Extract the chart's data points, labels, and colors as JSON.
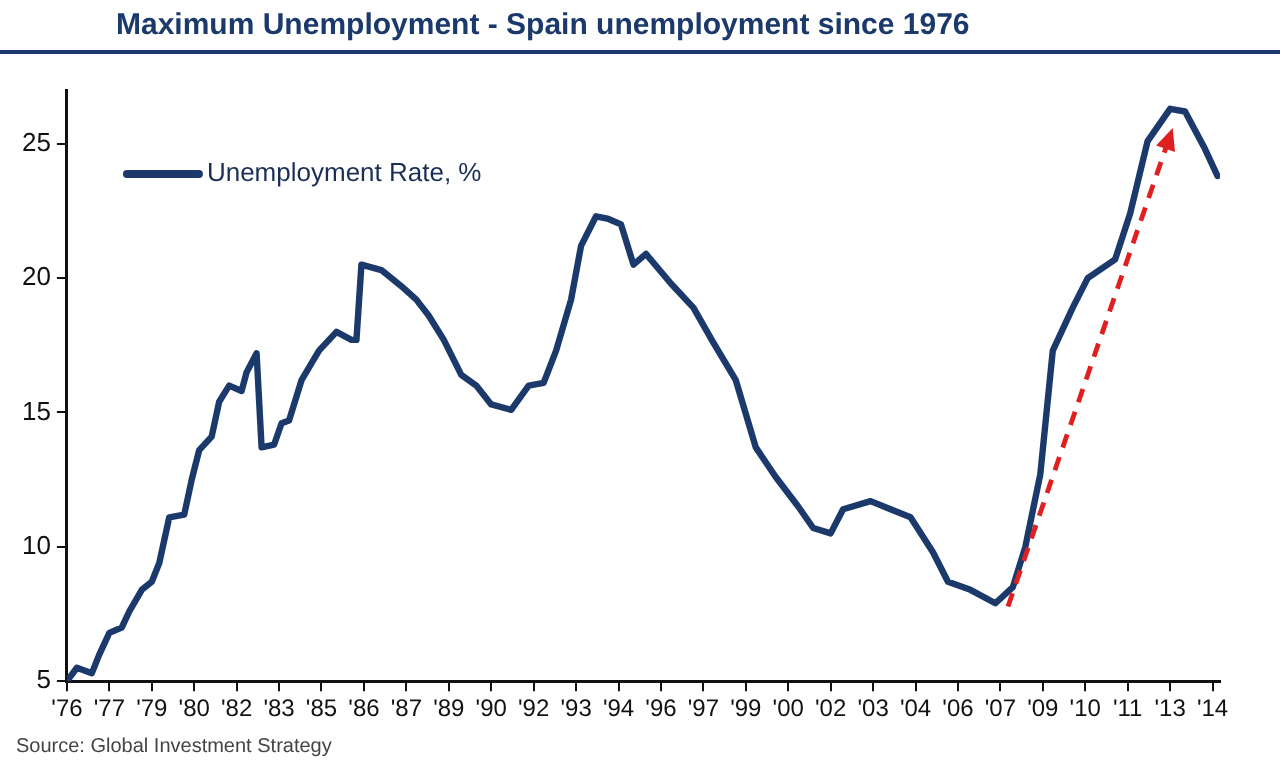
{
  "chart_data": {
    "type": "line",
    "title": "Maximum Unemployment - Spain unemployment since 1976",
    "annotations": [
      "Source: Global Investment Strategy"
    ],
    "xlim": [
      "1976-07",
      "2015-01"
    ],
    "xticks": [
      {
        "value": "1976-07",
        "label": "'76"
      },
      {
        "value": "1977-12",
        "label": "'77"
      },
      {
        "value": "1979-05",
        "label": "'79"
      },
      {
        "value": "1980-10",
        "label": "'80"
      },
      {
        "value": "1982-03",
        "label": "'82"
      },
      {
        "value": "1983-08",
        "label": "'83"
      },
      {
        "value": "1985-01",
        "label": "'85"
      },
      {
        "value": "1986-06",
        "label": "'86"
      },
      {
        "value": "1987-11",
        "label": "'87"
      },
      {
        "value": "1989-04",
        "label": "'89"
      },
      {
        "value": "1990-09",
        "label": "'90"
      },
      {
        "value": "1992-02",
        "label": "'92"
      },
      {
        "value": "1993-07",
        "label": "'93"
      },
      {
        "value": "1994-12",
        "label": "'94"
      },
      {
        "value": "1996-05",
        "label": "'96"
      },
      {
        "value": "1997-10",
        "label": "'97"
      },
      {
        "value": "1999-03",
        "label": "'99"
      },
      {
        "value": "2000-08",
        "label": "'00"
      },
      {
        "value": "2002-01",
        "label": "'02"
      },
      {
        "value": "2003-06",
        "label": "'03"
      },
      {
        "value": "2004-11",
        "label": "'04"
      },
      {
        "value": "2006-04",
        "label": "'06"
      },
      {
        "value": "2007-09",
        "label": "'07"
      },
      {
        "value": "2009-02",
        "label": "'09"
      },
      {
        "value": "2010-07",
        "label": "'10"
      },
      {
        "value": "2011-12",
        "label": "'11"
      },
      {
        "value": "2013-05",
        "label": "'13"
      },
      {
        "value": "2014-10",
        "label": "'14"
      }
    ],
    "ylim": [
      5,
      27
    ],
    "yticks": [
      5,
      10,
      15,
      20,
      25
    ],
    "grid": false,
    "legend": "top left",
    "marker": "none",
    "line_style": "solid",
    "series": [
      {
        "name": "Unemployment Rate, %",
        "color": "#1b3a6b",
        "x": [
          "1976-07",
          "1976-11",
          "1977-05",
          "1977-08",
          "1977-12",
          "1978-05",
          "1978-08",
          "1979-01",
          "1979-05",
          "1979-08",
          "1979-12",
          "1980-06",
          "1980-09",
          "1980-12",
          "1981-05",
          "1981-08",
          "1981-12",
          "1982-05",
          "1982-07",
          "1982-11",
          "1983-01",
          "1983-06",
          "1983-09",
          "1983-12",
          "1984-05",
          "1984-12",
          "1985-07",
          "1986-01",
          "1986-03",
          "1986-05",
          "1987-01",
          "1987-09",
          "1988-03",
          "1988-08",
          "1989-02",
          "1989-09",
          "1990-03",
          "1990-09",
          "1991-05",
          "1991-12",
          "1992-06",
          "1992-11",
          "1993-05",
          "1993-09",
          "1994-03",
          "1994-08",
          "1995-01",
          "1995-06",
          "1995-11",
          "1996-09",
          "1997-06",
          "1998-02",
          "1998-11",
          "1999-07",
          "2000-03",
          "2000-12",
          "2001-06",
          "2002-01",
          "2002-06",
          "2003-05",
          "2004-01",
          "2004-09",
          "2005-06",
          "2005-12",
          "2006-09",
          "2007-07",
          "2008-02",
          "2008-07",
          "2009-01",
          "2009-06",
          "2010-02",
          "2010-08",
          "2011-07",
          "2012-01",
          "2012-08",
          "2013-05",
          "2013-11",
          "2014-07",
          "2014-12"
        ],
        "values": [
          5.0,
          5.5,
          5.3,
          6.0,
          6.8,
          7.0,
          7.6,
          8.4,
          8.7,
          9.4,
          11.1,
          11.2,
          12.5,
          13.6,
          14.1,
          15.4,
          16.0,
          15.8,
          16.5,
          17.2,
          13.7,
          13.8,
          14.6,
          14.7,
          16.2,
          17.3,
          18.0,
          17.7,
          17.7,
          20.5,
          20.3,
          19.7,
          19.2,
          18.6,
          17.7,
          16.4,
          16.0,
          15.3,
          15.1,
          16.0,
          16.1,
          17.3,
          19.2,
          21.2,
          22.3,
          22.2,
          22.0,
          20.5,
          20.9,
          19.8,
          18.9,
          17.6,
          16.2,
          13.7,
          12.6,
          11.5,
          10.7,
          10.5,
          11.4,
          11.7,
          11.4,
          11.1,
          9.8,
          8.7,
          8.4,
          7.9,
          8.5,
          10.0,
          12.7,
          17.3,
          18.9,
          20.0,
          20.7,
          22.4,
          25.1,
          26.3,
          26.2,
          24.8,
          23.8
        ]
      }
    ]
  }
}
